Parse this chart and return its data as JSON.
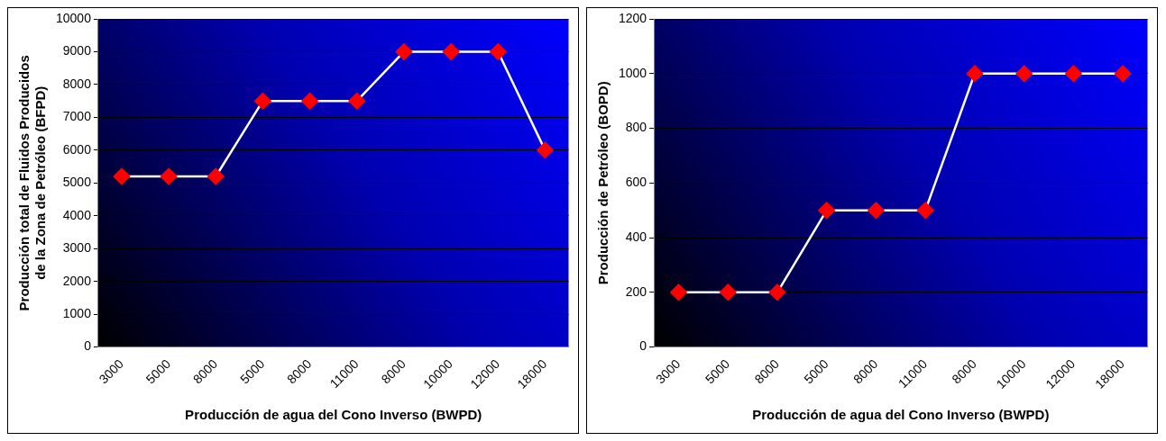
{
  "chart_data": [
    {
      "type": "line",
      "xlabel": "Producción de agua del Cono Inverso (BWPD)",
      "ylabel": "Producción total de Fluidos Producidos de la Zona de Petróleo (BFPD)",
      "categories": [
        "3000",
        "5000",
        "8000",
        "5000",
        "8000",
        "11000",
        "8000",
        "10000",
        "12000",
        "18000"
      ],
      "series": [
        {
          "color": "#ff0000",
          "values": [
            5200,
            5200,
            5200,
            7500,
            7500,
            7500,
            9000,
            9000,
            9000,
            6000
          ]
        }
      ],
      "ylim": [
        0,
        10000
      ],
      "yticks": [
        0,
        1000,
        2000,
        3000,
        4000,
        5000,
        6000,
        7000,
        8000,
        9000,
        10000
      ],
      "grid": "y",
      "legend": false,
      "marker": "diamond",
      "line_style": "solid"
    },
    {
      "type": "line",
      "xlabel": "Producción de agua del Cono Inverso (BWPD)",
      "ylabel": "Producción de Petróleo (BOPD)",
      "categories": [
        "3000",
        "5000",
        "8000",
        "5000",
        "8000",
        "11000",
        "8000",
        "10000",
        "12000",
        "18000"
      ],
      "series": [
        {
          "color": "#ff0000",
          "values": [
            200,
            200,
            200,
            500,
            500,
            500,
            1000,
            1000,
            1000,
            1000
          ]
        }
      ],
      "ylim": [
        0,
        1200
      ],
      "yticks": [
        0,
        200,
        400,
        600,
        800,
        1000,
        1200
      ],
      "grid": "y",
      "legend": false,
      "marker": "diamond",
      "line_style": "solid"
    }
  ]
}
